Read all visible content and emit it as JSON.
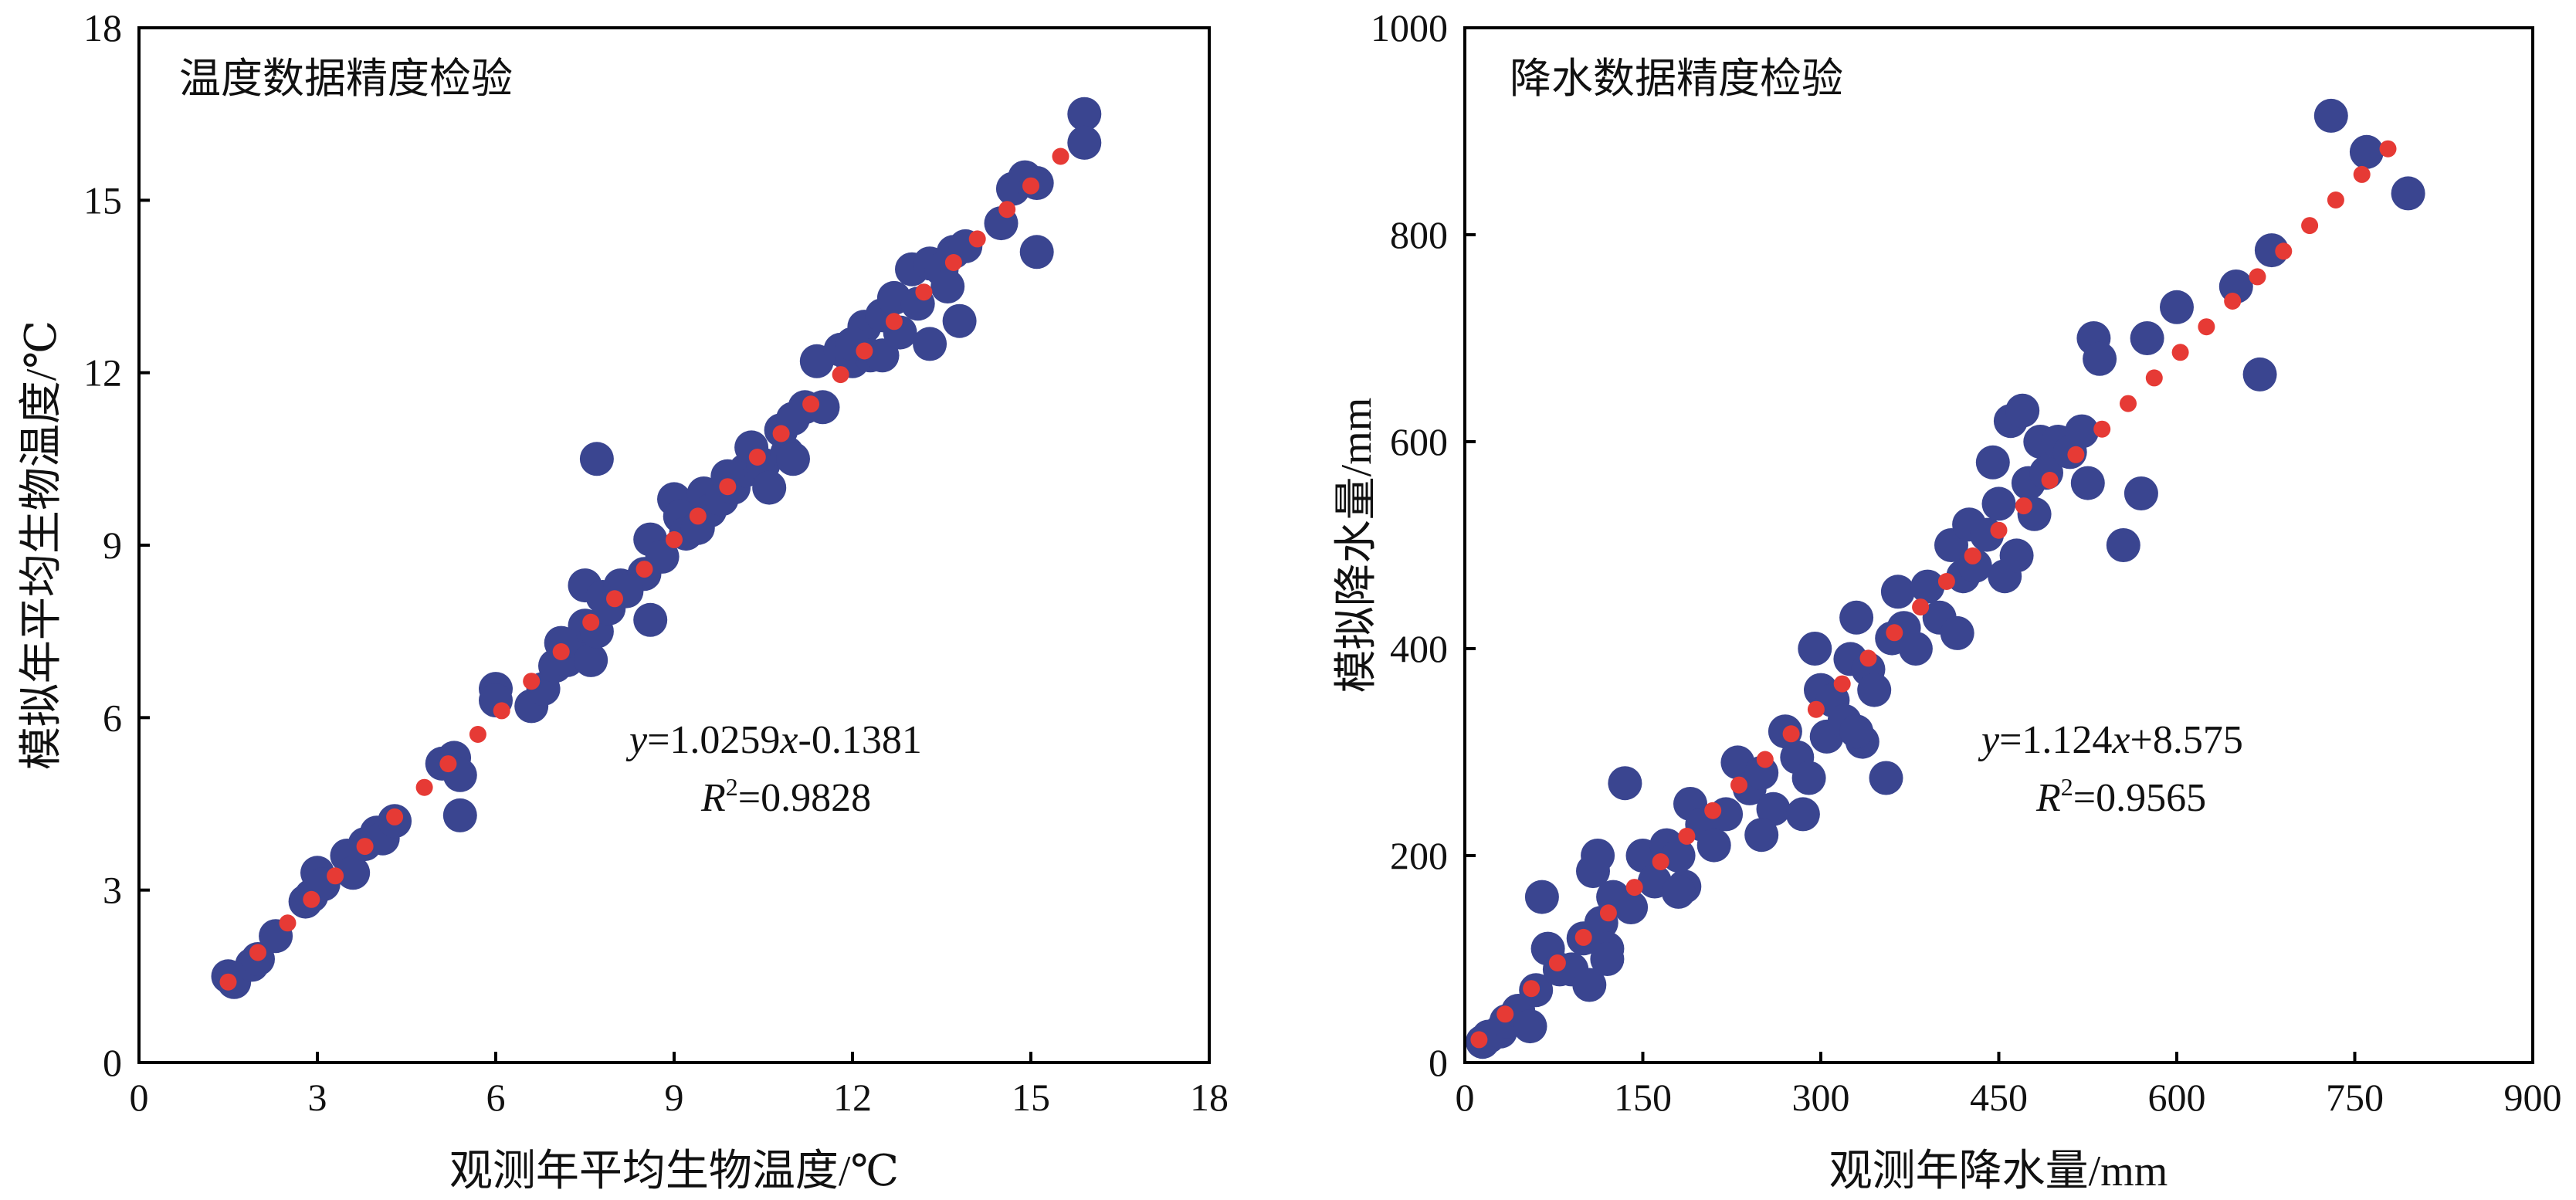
{
  "colors": {
    "observed_points": "#3a4590",
    "fit_line": "#e63a35",
    "axis": "#000000"
  },
  "chart_data": [
    {
      "type": "scatter",
      "title": "温度数据精度检验",
      "xlabel": "观测年平均生物温度/℃",
      "ylabel": "模拟年平均生物温度/℃",
      "xlim": [
        0,
        18
      ],
      "ylim": [
        0,
        18
      ],
      "x_ticks": [
        "0",
        "3",
        "6",
        "9",
        "12",
        "15",
        "18"
      ],
      "y_ticks": [
        "0",
        "3",
        "6",
        "9",
        "12",
        "15",
        "18"
      ],
      "grid": false,
      "equation": {
        "y": "y",
        "eq": "=1.0259",
        "x": "x",
        "rest": "-0.1381"
      },
      "r2": {
        "R": "R",
        "sup": "2",
        "val": "=0.9828"
      },
      "fit": {
        "slope": 1.0259,
        "intercept": -0.1381,
        "dots_x": [
          1.5,
          2.0,
          2.5,
          2.9,
          3.3,
          3.8,
          4.3,
          4.8,
          5.2,
          5.7,
          6.1,
          6.6,
          7.1,
          7.6,
          8.0,
          8.5,
          9.0,
          9.4,
          9.9,
          10.4,
          10.8,
          11.3,
          11.8,
          12.2,
          12.7,
          13.2,
          13.7,
          14.1,
          14.6,
          15.0,
          15.5
        ]
      },
      "series": [
        {
          "points": [
            [
              1.5,
              1.5
            ],
            [
              1.6,
              1.4
            ],
            [
              1.9,
              1.7
            ],
            [
              2.0,
              1.8
            ],
            [
              2.3,
              2.2
            ],
            [
              2.8,
              2.8
            ],
            [
              2.9,
              2.9
            ],
            [
              3.0,
              3.3
            ],
            [
              3.1,
              3.1
            ],
            [
              3.5,
              3.6
            ],
            [
              3.6,
              3.3
            ],
            [
              3.8,
              3.8
            ],
            [
              4.0,
              4.0
            ],
            [
              4.1,
              3.9
            ],
            [
              4.3,
              4.2
            ],
            [
              5.1,
              5.2
            ],
            [
              5.3,
              5.3
            ],
            [
              5.4,
              5.0
            ],
            [
              5.4,
              4.3
            ],
            [
              6.0,
              6.5
            ],
            [
              6.0,
              6.3
            ],
            [
              6.6,
              6.2
            ],
            [
              6.8,
              6.5
            ],
            [
              7.0,
              6.9
            ],
            [
              7.2,
              7.0
            ],
            [
              7.4,
              7.3
            ],
            [
              7.5,
              7.6
            ],
            [
              7.5,
              8.3
            ],
            [
              7.6,
              7.0
            ],
            [
              7.7,
              7.5
            ],
            [
              7.7,
              10.5
            ],
            [
              7.8,
              8.1
            ],
            [
              7.9,
              7.9
            ],
            [
              8.1,
              8.3
            ],
            [
              8.5,
              8.5
            ],
            [
              8.6,
              9.1
            ],
            [
              8.6,
              7.7
            ],
            [
              8.8,
              8.8
            ],
            [
              9.0,
              9.8
            ],
            [
              9.1,
              9.5
            ],
            [
              9.2,
              9.2
            ],
            [
              9.4,
              9.3
            ],
            [
              9.5,
              9.9
            ],
            [
              9.6,
              9.6
            ],
            [
              9.8,
              9.8
            ],
            [
              10.0,
              10.0
            ],
            [
              10.2,
              10.3
            ],
            [
              10.3,
              10.7
            ],
            [
              10.5,
              10.4
            ],
            [
              10.6,
              10.0
            ],
            [
              10.8,
              11.0
            ],
            [
              10.9,
              10.6
            ],
            [
              11.0,
              11.2
            ],
            [
              11.2,
              11.4
            ],
            [
              11.4,
              12.2
            ],
            [
              11.5,
              11.4
            ],
            [
              11.8,
              12.4
            ],
            [
              12.0,
              12.2
            ],
            [
              12.2,
              12.8
            ],
            [
              12.3,
              12.3
            ],
            [
              12.5,
              12.3
            ],
            [
              12.5,
              13.0
            ],
            [
              12.7,
              13.3
            ],
            [
              12.8,
              12.7
            ],
            [
              13.0,
              13.8
            ],
            [
              13.1,
              13.2
            ],
            [
              13.3,
              13.9
            ],
            [
              13.3,
              12.5
            ],
            [
              13.5,
              13.8
            ],
            [
              13.7,
              14.1
            ],
            [
              13.8,
              12.9
            ],
            [
              13.9,
              14.2
            ],
            [
              14.5,
              14.6
            ],
            [
              14.7,
              15.2
            ],
            [
              14.9,
              15.4
            ],
            [
              15.1,
              14.1
            ],
            [
              15.1,
              15.3
            ],
            [
              15.9,
              16.5
            ],
            [
              15.9,
              16.0
            ],
            [
              12.0,
              12.5
            ],
            [
              11.0,
              10.5
            ],
            [
              9.9,
              10.2
            ],
            [
              8.2,
              8.2
            ],
            [
              7.1,
              7.3
            ],
            [
              13.6,
              13.5
            ]
          ]
        }
      ]
    },
    {
      "type": "scatter",
      "title": "降水数据精度检验",
      "xlabel": "观测年降水量/mm",
      "ylabel": "模拟降水量/mm",
      "xlim": [
        0,
        900
      ],
      "ylim": [
        0,
        1000
      ],
      "x_ticks": [
        "0",
        "150",
        "300",
        "450",
        "600",
        "750",
        "900"
      ],
      "y_ticks": [
        "0",
        "200",
        "400",
        "600",
        "800",
        "1000"
      ],
      "grid": false,
      "equation": {
        "y": "y",
        "eq": "=1.124",
        "x": "x",
        "rest": "+8.575"
      },
      "r2": {
        "R": "R",
        "sup": "2",
        "val": "=0.9565"
      },
      "fit": {
        "slope": 1.124,
        "intercept": 8.575,
        "dots_x": [
          12,
          34,
          56,
          78,
          100,
          121,
          143,
          165,
          187,
          209,
          231,
          253,
          275,
          296,
          318,
          340,
          362,
          384,
          406,
          428,
          450,
          471,
          493,
          515,
          537,
          559,
          581,
          603,
          625,
          647,
          668,
          690,
          712,
          734,
          756,
          778
        ]
      },
      "series": [
        {
          "points": [
            [
              15,
              20
            ],
            [
              20,
              25
            ],
            [
              30,
              30
            ],
            [
              35,
              40
            ],
            [
              45,
              50
            ],
            [
              55,
              35
            ],
            [
              60,
              70
            ],
            [
              65,
              160
            ],
            [
              70,
              110
            ],
            [
              80,
              90
            ],
            [
              90,
              90
            ],
            [
              100,
              120
            ],
            [
              105,
              75
            ],
            [
              108,
              185
            ],
            [
              112,
              200
            ],
            [
              115,
              135
            ],
            [
              120,
              110
            ],
            [
              125,
              160
            ],
            [
              135,
              270
            ],
            [
              140,
              150
            ],
            [
              150,
              200
            ],
            [
              160,
              175
            ],
            [
              170,
              210
            ],
            [
              180,
              200
            ],
            [
              185,
              170
            ],
            [
              190,
              250
            ],
            [
              200,
              230
            ],
            [
              210,
              210
            ],
            [
              220,
              240
            ],
            [
              230,
              290
            ],
            [
              240,
              265
            ],
            [
              250,
              280
            ],
            [
              260,
              245
            ],
            [
              270,
              320
            ],
            [
              280,
              295
            ],
            [
              285,
              240
            ],
            [
              290,
              275
            ],
            [
              295,
              400
            ],
            [
              300,
              360
            ],
            [
              305,
              315
            ],
            [
              310,
              350
            ],
            [
              320,
              330
            ],
            [
              325,
              390
            ],
            [
              330,
              430
            ],
            [
              335,
              310
            ],
            [
              340,
              380
            ],
            [
              345,
              360
            ],
            [
              355,
              275
            ],
            [
              360,
              410
            ],
            [
              365,
              455
            ],
            [
              370,
              420
            ],
            [
              380,
              400
            ],
            [
              390,
              460
            ],
            [
              400,
              430
            ],
            [
              410,
              500
            ],
            [
              415,
              415
            ],
            [
              420,
              470
            ],
            [
              425,
              520
            ],
            [
              430,
              480
            ],
            [
              440,
              510
            ],
            [
              445,
              580
            ],
            [
              450,
              540
            ],
            [
              455,
              470
            ],
            [
              460,
              620
            ],
            [
              465,
              490
            ],
            [
              470,
              630
            ],
            [
              475,
              560
            ],
            [
              480,
              530
            ],
            [
              485,
              600
            ],
            [
              490,
              570
            ],
            [
              500,
              600
            ],
            [
              510,
              590
            ],
            [
              520,
              610
            ],
            [
              525,
              560
            ],
            [
              530,
              700
            ],
            [
              535,
              680
            ],
            [
              555,
              500
            ],
            [
              570,
              550
            ],
            [
              575,
              700
            ],
            [
              600,
              730
            ],
            [
              650,
              750
            ],
            [
              670,
              665
            ],
            [
              680,
              785
            ],
            [
              730,
              915
            ],
            [
              760,
              880
            ],
            [
              795,
              840
            ],
            [
              180,
              165
            ],
            [
              250,
              220
            ],
            [
              330,
              320
            ],
            [
              120,
              100
            ]
          ]
        }
      ]
    }
  ]
}
